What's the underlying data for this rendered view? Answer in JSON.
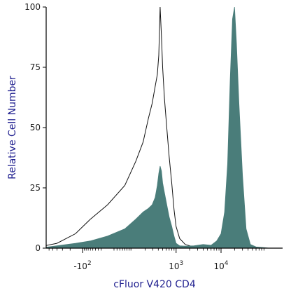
{
  "chart_data": {
    "type": "area",
    "title": "",
    "xlabel": "cFluor V420 CD4",
    "ylabel": "Relative Cell Number",
    "x_scale": "biexponential",
    "ylim": [
      0,
      100
    ],
    "y_ticks": [
      0,
      25,
      50,
      75,
      100
    ],
    "x_ticks": [
      {
        "value": -100,
        "label": "-10",
        "sup": "2"
      },
      {
        "value": 1000,
        "label": "10",
        "sup": "3"
      },
      {
        "value": 10000,
        "label": "10",
        "sup": "4"
      }
    ],
    "grid": false,
    "legend": "none",
    "colors": {
      "axis_title": "#1f1f8f",
      "fill": "#4a7d7a",
      "outline": "#111111"
    },
    "series": [
      {
        "style": "outline",
        "points": [
          [
            -3000,
            0
          ],
          [
            -1000,
            0.5
          ],
          [
            -400,
            2
          ],
          [
            -150,
            6
          ],
          [
            -60,
            12
          ],
          [
            0,
            18
          ],
          [
            60,
            26
          ],
          [
            120,
            36
          ],
          [
            180,
            44
          ],
          [
            240,
            54
          ],
          [
            290,
            60
          ],
          [
            340,
            67
          ],
          [
            380,
            72
          ],
          [
            410,
            80
          ],
          [
            440,
            100
          ],
          [
            470,
            88
          ],
          [
            500,
            75
          ],
          [
            550,
            62
          ],
          [
            620,
            50
          ],
          [
            700,
            38
          ],
          [
            800,
            27
          ],
          [
            900,
            16
          ],
          [
            1000,
            9
          ],
          [
            1200,
            4
          ],
          [
            1600,
            1.5
          ],
          [
            2500,
            0.5
          ],
          [
            4000,
            0.3
          ],
          [
            8000,
            0
          ]
        ]
      },
      {
        "style": "filled",
        "points": [
          [
            -3000,
            0
          ],
          [
            -1000,
            0
          ],
          [
            -400,
            1
          ],
          [
            -150,
            2
          ],
          [
            -60,
            3
          ],
          [
            0,
            5
          ],
          [
            60,
            8
          ],
          [
            120,
            12
          ],
          [
            180,
            15
          ],
          [
            240,
            16.5
          ],
          [
            290,
            18
          ],
          [
            340,
            21
          ],
          [
            380,
            26
          ],
          [
            410,
            31
          ],
          [
            440,
            34
          ],
          [
            470,
            32
          ],
          [
            500,
            27
          ],
          [
            550,
            23
          ],
          [
            620,
            18
          ],
          [
            700,
            13
          ],
          [
            800,
            9
          ],
          [
            900,
            5
          ],
          [
            1000,
            2
          ],
          [
            1200,
            1
          ],
          [
            1600,
            0.8
          ],
          [
            2500,
            1
          ],
          [
            4000,
            1.5
          ],
          [
            6000,
            1.2
          ],
          [
            8000,
            3
          ],
          [
            10000,
            6
          ],
          [
            12000,
            15
          ],
          [
            14000,
            35
          ],
          [
            16000,
            70
          ],
          [
            18000,
            95
          ],
          [
            20000,
            100
          ],
          [
            22000,
            85
          ],
          [
            25000,
            60
          ],
          [
            30000,
            30
          ],
          [
            36000,
            8
          ],
          [
            45000,
            1.5
          ],
          [
            60000,
            0.5
          ],
          [
            120000,
            0
          ]
        ]
      }
    ]
  }
}
